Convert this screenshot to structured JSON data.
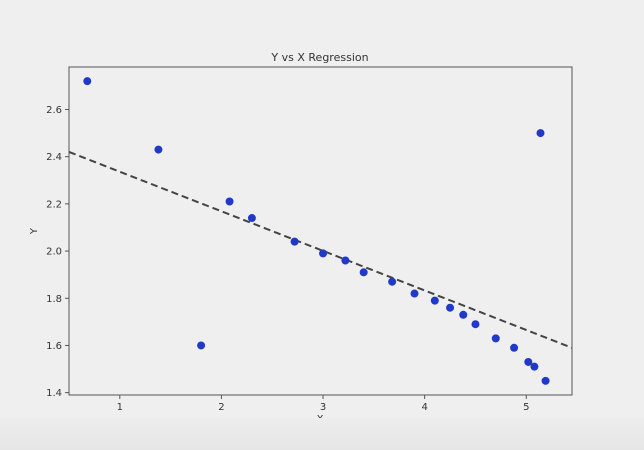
{
  "chart_data": {
    "type": "scatter",
    "title": "Y vs X Regression",
    "xlabel": "X",
    "ylabel": "Y",
    "xlim": [
      0.5,
      5.45
    ],
    "ylim": [
      1.39,
      2.78
    ],
    "xticks": [
      1,
      2,
      3,
      4,
      5
    ],
    "yticks": [
      1.4,
      1.6,
      1.8,
      2.0,
      2.2,
      2.4,
      2.6
    ],
    "xtick_labels": [
      "1",
      "2",
      "3",
      "4",
      "5"
    ],
    "ytick_labels": [
      "1.4",
      "1.6",
      "1.8",
      "2.0",
      "2.2",
      "2.4",
      "2.6"
    ],
    "grid": false,
    "legend": "none",
    "points": {
      "color": "#2139c9",
      "x": [
        0.68,
        1.38,
        1.8,
        2.08,
        2.3,
        2.72,
        3.0,
        3.22,
        3.4,
        3.68,
        3.9,
        4.1,
        4.25,
        4.38,
        4.5,
        4.7,
        4.88,
        5.02,
        5.08,
        5.14,
        5.19
      ],
      "y": [
        2.72,
        2.43,
        1.6,
        2.21,
        2.14,
        2.04,
        1.99,
        1.96,
        1.91,
        1.87,
        1.82,
        1.79,
        1.76,
        1.73,
        1.69,
        1.63,
        1.59,
        1.53,
        1.51,
        2.5,
        1.45
      ]
    },
    "regression_line": {
      "color": "#444444",
      "style": "dashed",
      "x": [
        0.5,
        5.45
      ],
      "y": [
        2.42,
        1.59
      ]
    }
  }
}
